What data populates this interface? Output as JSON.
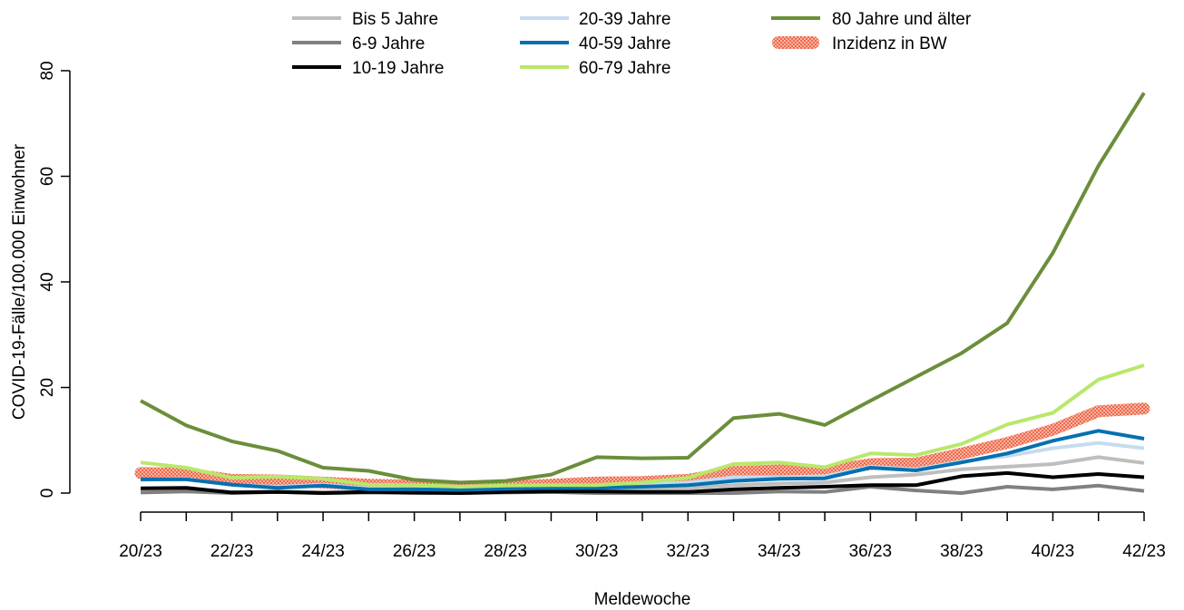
{
  "chart_data": {
    "type": "line",
    "title": "",
    "xlabel": "Meldewoche",
    "ylabel": "COVID-19-Fälle/100.000 Einwohner",
    "ylim": [
      0,
      80
    ],
    "yticks": [
      0,
      20,
      40,
      60,
      80
    ],
    "x": [
      "20/23",
      "21/23",
      "22/23",
      "23/23",
      "24/23",
      "25/23",
      "26/23",
      "27/23",
      "28/23",
      "29/23",
      "30/23",
      "31/23",
      "32/23",
      "33/23",
      "34/23",
      "35/23",
      "36/23",
      "37/23",
      "38/23",
      "39/23",
      "40/23",
      "41/23",
      "42/23"
    ],
    "xtick_labels_shown": [
      "20/23",
      "22/23",
      "24/23",
      "26/23",
      "28/23",
      "30/23",
      "32/23",
      "34/23",
      "36/23",
      "38/23",
      "40/23",
      "42/23"
    ],
    "grid": false,
    "legend_position": "top",
    "series": [
      {
        "name": "Inzidenz in BW",
        "color": "#ef6a4c",
        "style": "band",
        "values": [
          3.8,
          3.7,
          2.5,
          2.4,
          2.0,
          1.6,
          1.4,
          1.0,
          1.2,
          1.6,
          2.0,
          2.1,
          2.5,
          4.0,
          4.3,
          4.1,
          5.5,
          5.6,
          7.5,
          9.5,
          12.0,
          15.5,
          16.0
        ]
      },
      {
        "name": "Bis 5 Jahre",
        "color": "#bebebe",
        "values": [
          0.6,
          0.8,
          0.2,
          0.3,
          0.2,
          0.3,
          0.2,
          0.1,
          0.2,
          0.4,
          0.5,
          0.6,
          0.9,
          1.5,
          1.8,
          2.0,
          3.0,
          3.5,
          4.5,
          5.0,
          5.5,
          6.8,
          5.7
        ]
      },
      {
        "name": "6-9 Jahre",
        "color": "#808080",
        "values": [
          0.1,
          0.3,
          0.0,
          0.2,
          0.0,
          0.1,
          0.0,
          0.0,
          0.1,
          0.2,
          0.0,
          0.0,
          0.0,
          0.0,
          0.3,
          0.2,
          1.2,
          0.5,
          0.0,
          1.2,
          0.7,
          1.4,
          0.4
        ]
      },
      {
        "name": "10-19 Jahre",
        "color": "#000000",
        "values": [
          0.9,
          1.0,
          0.1,
          0.2,
          0.0,
          0.2,
          0.1,
          0.0,
          0.2,
          0.3,
          0.3,
          0.2,
          0.2,
          0.7,
          1.0,
          1.2,
          1.5,
          1.5,
          3.2,
          3.8,
          3.0,
          3.6,
          3.0
        ]
      },
      {
        "name": "20-39 Jahre",
        "color": "#c6dbef",
        "values": [
          2.5,
          2.7,
          1.5,
          1.2,
          1.6,
          0.9,
          0.8,
          0.9,
          1.0,
          1.2,
          1.4,
          1.6,
          2.0,
          3.0,
          3.0,
          3.2,
          5.0,
          4.5,
          6.0,
          7.0,
          8.5,
          9.5,
          8.5
        ]
      },
      {
        "name": "40-59 Jahre",
        "color": "#0570b0",
        "values": [
          2.6,
          2.6,
          1.6,
          1.0,
          1.4,
          0.7,
          0.7,
          0.6,
          0.8,
          1.0,
          1.0,
          1.2,
          1.5,
          2.3,
          2.7,
          2.8,
          4.8,
          4.3,
          5.8,
          7.5,
          9.9,
          11.8,
          10.3
        ]
      },
      {
        "name": "60-79 Jahre",
        "color": "#b8e86a",
        "values": [
          5.8,
          4.8,
          2.9,
          3.1,
          2.7,
          1.6,
          1.5,
          1.2,
          1.4,
          1.5,
          1.5,
          2.0,
          2.9,
          5.5,
          5.8,
          4.9,
          7.5,
          7.2,
          9.3,
          13.0,
          15.2,
          21.5,
          24.2
        ]
      },
      {
        "name": "80 Jahre und älter",
        "color": "#6b8e3a",
        "values": [
          17.5,
          12.8,
          9.8,
          8.0,
          4.8,
          4.2,
          2.5,
          2.0,
          2.3,
          3.5,
          6.8,
          6.6,
          6.7,
          14.2,
          15.0,
          12.9,
          17.5,
          22.0,
          26.5,
          32.2,
          45.5,
          62.0,
          75.8
        ]
      }
    ],
    "legend": [
      {
        "label": "Bis 5 Jahre",
        "color": "#bebebe",
        "style": "line"
      },
      {
        "label": "6-9 Jahre",
        "color": "#808080",
        "style": "line"
      },
      {
        "label": "10-19 Jahre",
        "color": "#000000",
        "style": "line"
      },
      {
        "label": "20-39 Jahre",
        "color": "#c6dbef",
        "style": "line"
      },
      {
        "label": "40-59 Jahre",
        "color": "#0570b0",
        "style": "line"
      },
      {
        "label": "60-79 Jahre",
        "color": "#b8e86a",
        "style": "line"
      },
      {
        "label": "80 Jahre und älter",
        "color": "#6b8e3a",
        "style": "line"
      },
      {
        "label": "Inzidenz in BW",
        "color": "#ef6a4c",
        "style": "band"
      }
    ]
  }
}
